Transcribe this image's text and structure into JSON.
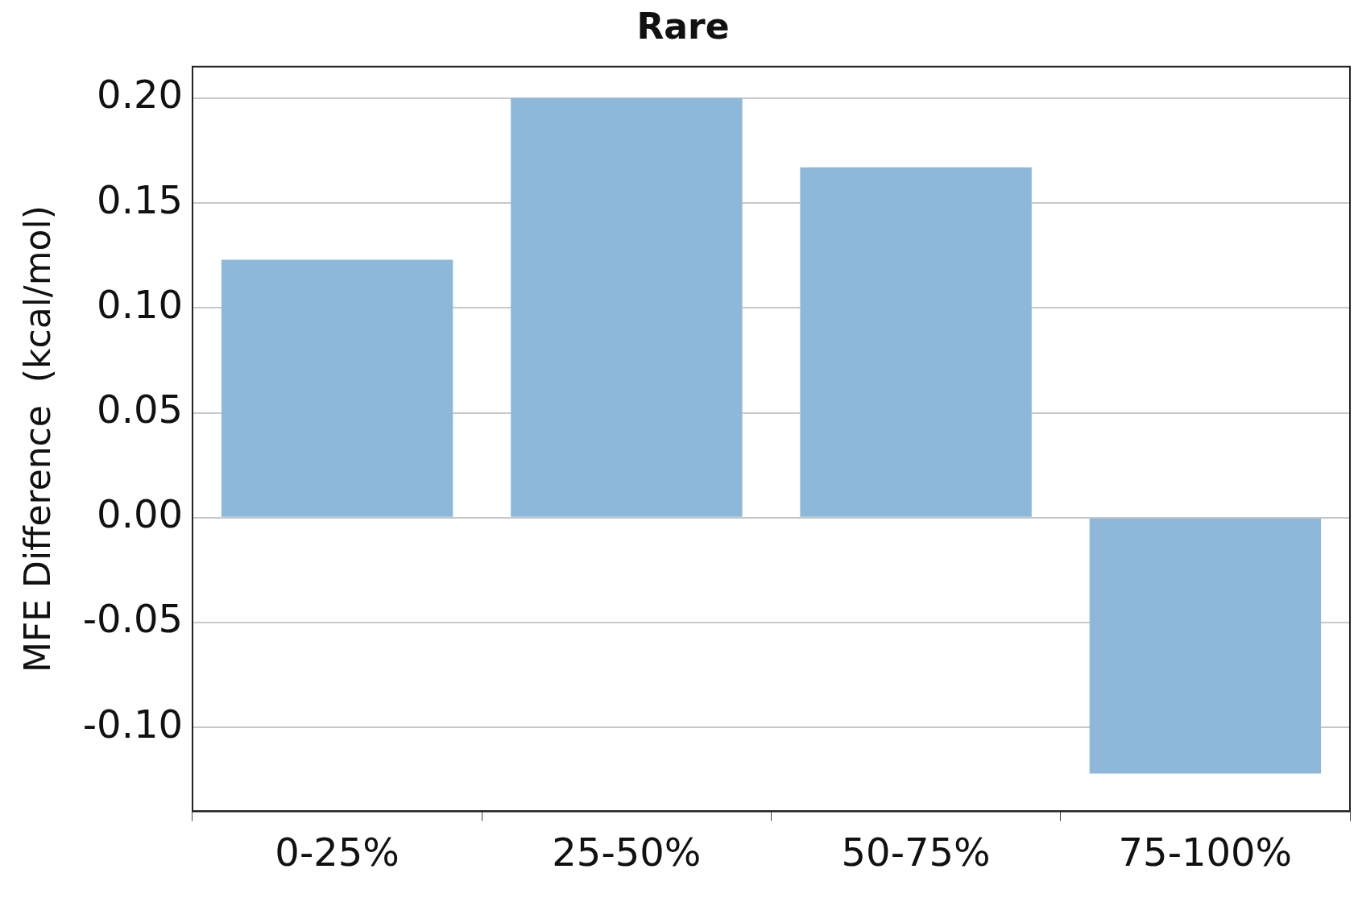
{
  "chart_data": {
    "type": "bar",
    "title": "Rare",
    "ylabel": "MFE Difference  (kcal/mol)",
    "categories": [
      "0-25%",
      "25-50%",
      "50-75%",
      "75-100%"
    ],
    "values": [
      0.123,
      0.2,
      0.167,
      -0.122
    ],
    "color": "#8db8da",
    "ylim": [
      -0.14,
      0.215
    ],
    "yticks": [
      {
        "value": -0.1,
        "label": "-0.10"
      },
      {
        "value": -0.05,
        "label": "-0.05"
      },
      {
        "value": 0,
        "label": "0.00"
      },
      {
        "value": 0.05,
        "label": "0.05"
      },
      {
        "value": 0.1,
        "label": "0.10"
      },
      {
        "value": 0.15,
        "label": "0.15"
      },
      {
        "value": 0.2,
        "label": "0.20"
      }
    ],
    "grid": "y",
    "legend": false
  }
}
